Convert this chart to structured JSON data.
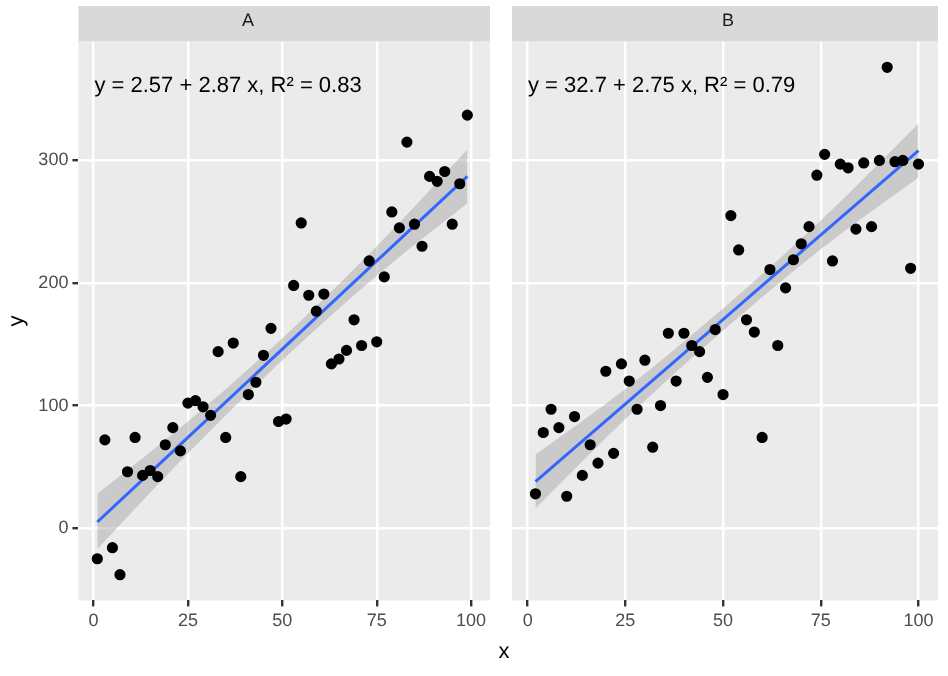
{
  "chart_data": [
    {
      "type": "scatter",
      "title": "A",
      "xlabel": "x",
      "ylabel": "y",
      "annotations": [
        "y = 2.57 + 2.87 x, R² = 0.83"
      ],
      "grid": true,
      "x": [
        1,
        3,
        5,
        7,
        9,
        11,
        13,
        15,
        17,
        19,
        21,
        23,
        25,
        27,
        29,
        31,
        33,
        35,
        37,
        39,
        41,
        43,
        45,
        47,
        49,
        51,
        53,
        55,
        57,
        59,
        61,
        63,
        65,
        67,
        69,
        71,
        73,
        75,
        77,
        79,
        81,
        83,
        85,
        87,
        89,
        91,
        93,
        95,
        97,
        99
      ],
      "series": [
        {
          "color": "#000000",
          "marker": "circle",
          "values": [
            -25,
            72,
            -16,
            -38,
            46,
            74,
            43,
            47,
            42,
            68,
            82,
            63,
            102,
            104,
            99,
            92,
            144,
            74,
            151,
            42,
            109,
            119,
            141,
            163,
            87,
            89,
            198,
            249,
            190,
            177,
            191,
            134,
            138,
            145,
            170,
            149,
            218,
            152,
            205,
            258,
            245,
            315,
            248,
            230,
            287,
            283,
            291,
            248,
            281,
            337
          ]
        },
        {
          "type": "line",
          "marker": "none",
          "color": "#3366ff",
          "x": [
            1,
            25,
            50,
            75,
            99
          ],
          "values": [
            5,
            74,
            146,
            218,
            287
          ],
          "lower": [
            -17,
            61,
            137,
            206,
            265
          ],
          "upper": [
            28,
            87,
            155,
            230,
            309
          ]
        }
      ],
      "xlim": [
        -4,
        105
      ],
      "ylim": [
        -59,
        397
      ],
      "xticks": [
        0,
        25,
        50,
        75,
        100
      ],
      "yticks": [
        0,
        100,
        200,
        300
      ]
    },
    {
      "type": "scatter",
      "title": "B",
      "annotations": [
        "y = 32.7 + 2.75 x, R² = 0.79"
      ],
      "grid": true,
      "tick_labels": "x",
      "x": [
        2,
        4,
        6,
        8,
        10,
        12,
        14,
        16,
        18,
        20,
        22,
        24,
        26,
        28,
        30,
        32,
        34,
        36,
        38,
        40,
        42,
        44,
        46,
        48,
        50,
        52,
        54,
        56,
        58,
        60,
        62,
        64,
        66,
        68,
        70,
        72,
        74,
        76,
        78,
        80,
        82,
        84,
        86,
        88,
        90,
        92,
        94,
        96,
        98,
        100
      ],
      "series": [
        {
          "color": "#000000",
          "marker": "circle",
          "values": [
            28,
            78,
            97,
            82,
            26,
            91,
            43,
            68,
            53,
            128,
            61,
            134,
            120,
            97,
            137,
            66,
            100,
            159,
            120,
            159,
            149,
            144,
            123,
            162,
            109,
            255,
            227,
            170,
            160,
            74,
            211,
            149,
            196,
            219,
            232,
            246,
            288,
            305,
            218,
            297,
            294,
            244,
            298,
            246,
            300,
            376,
            299,
            300,
            212,
            297
          ]
        },
        {
          "type": "line",
          "marker": "none",
          "color": "#3366ff",
          "x": [
            2,
            26,
            51,
            76,
            100
          ],
          "values": [
            38,
            104,
            173,
            242,
            308
          ],
          "lower": [
            16,
            92,
            164,
            230,
            286
          ],
          "upper": [
            60,
            116,
            182,
            254,
            330
          ]
        }
      ],
      "xlim": [
        -4,
        105
      ],
      "ylim": [
        -59,
        397
      ],
      "xticks": [
        0,
        25,
        50,
        75,
        100
      ],
      "yticks": [
        0,
        100,
        200,
        300
      ]
    }
  ]
}
